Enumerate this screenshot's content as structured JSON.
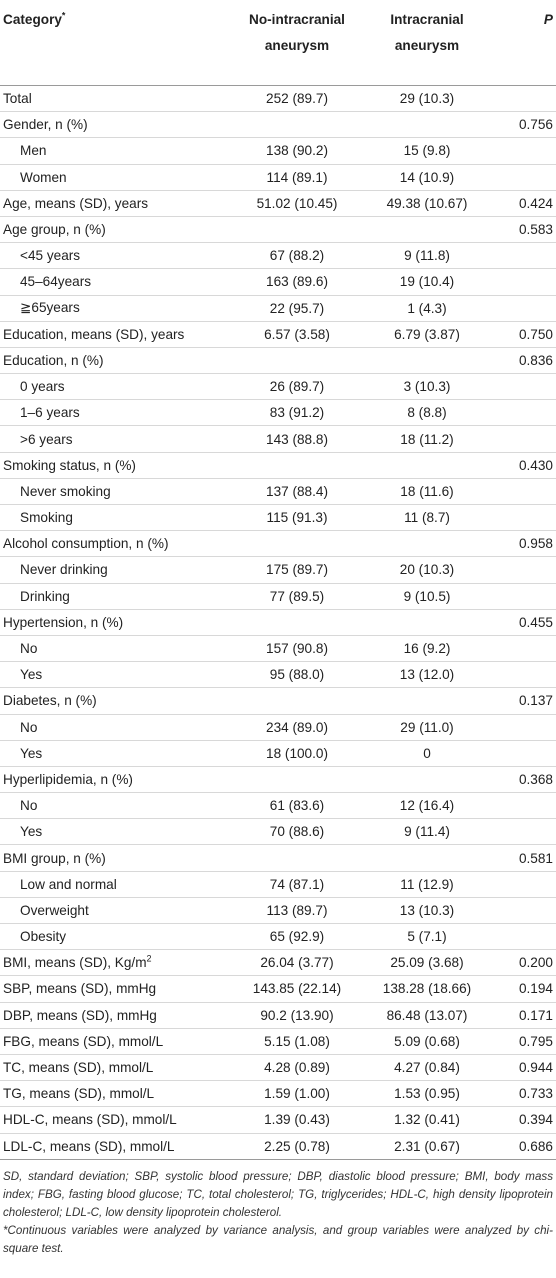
{
  "header": {
    "category": "Category",
    "category_mark": "*",
    "col_no": "No-intracranial aneurysm",
    "col_yes": "Intracranial aneurysm",
    "col_p": "P"
  },
  "rows": [
    {
      "label": "Total",
      "no": "252 (89.7)",
      "yes": "29 (10.3)",
      "p": "",
      "sub": false
    },
    {
      "label": "Gender, n (%)",
      "no": "",
      "yes": "",
      "p": "0.756",
      "sub": false
    },
    {
      "label": "Men",
      "no": "138 (90.2)",
      "yes": "15 (9.8)",
      "p": "",
      "sub": true
    },
    {
      "label": "Women",
      "no": "114 (89.1)",
      "yes": "14 (10.9)",
      "p": "",
      "sub": true
    },
    {
      "label": "Age, means (SD), years",
      "no": "51.02 (10.45)",
      "yes": "49.38 (10.67)",
      "p": "0.424",
      "sub": false
    },
    {
      "label": "Age group, n (%)",
      "no": "",
      "yes": "",
      "p": "0.583",
      "sub": false
    },
    {
      "label": "<45 years",
      "no": "67 (88.2)",
      "yes": "9 (11.8)",
      "p": "",
      "sub": true
    },
    {
      "label": "45–64years",
      "no": "163 (89.6)",
      "yes": "19 (10.4)",
      "p": "",
      "sub": true
    },
    {
      "label": "≧65years",
      "no": "22 (95.7)",
      "yes": "1 (4.3)",
      "p": "",
      "sub": true
    },
    {
      "label": "Education, means (SD), years",
      "no": "6.57 (3.58)",
      "yes": "6.79 (3.87)",
      "p": "0.750",
      "sub": false
    },
    {
      "label": "Education, n (%)",
      "no": "",
      "yes": "",
      "p": "0.836",
      "sub": false
    },
    {
      "label": "0 years",
      "no": "26 (89.7)",
      "yes": "3 (10.3)",
      "p": "",
      "sub": true
    },
    {
      "label": "1–6 years",
      "no": "83 (91.2)",
      "yes": "8 (8.8)",
      "p": "",
      "sub": true
    },
    {
      "label": ">6 years",
      "no": "143 (88.8)",
      "yes": "18 (11.2)",
      "p": "",
      "sub": true
    },
    {
      "label": "Smoking status, n (%)",
      "no": "",
      "yes": "",
      "p": "0.430",
      "sub": false
    },
    {
      "label": "Never smoking",
      "no": "137 (88.4)",
      "yes": "18 (11.6)",
      "p": "",
      "sub": true
    },
    {
      "label": "Smoking",
      "no": "115 (91.3)",
      "yes": "11 (8.7)",
      "p": "",
      "sub": true
    },
    {
      "label": "Alcohol consumption, n (%)",
      "no": "",
      "yes": "",
      "p": "0.958",
      "sub": false
    },
    {
      "label": "Never drinking",
      "no": "175 (89.7)",
      "yes": "20 (10.3)",
      "p": "",
      "sub": true
    },
    {
      "label": "Drinking",
      "no": "77 (89.5)",
      "yes": "9 (10.5)",
      "p": "",
      "sub": true
    },
    {
      "label": "Hypertension, n (%)",
      "no": "",
      "yes": "",
      "p": "0.455",
      "sub": false
    },
    {
      "label": "No",
      "no": "157 (90.8)",
      "yes": "16 (9.2)",
      "p": "",
      "sub": true
    },
    {
      "label": "Yes",
      "no": "95 (88.0)",
      "yes": "13 (12.0)",
      "p": "",
      "sub": true
    },
    {
      "label": "Diabetes, n (%)",
      "no": "",
      "yes": "",
      "p": "0.137",
      "sub": false
    },
    {
      "label": "No",
      "no": "234 (89.0)",
      "yes": "29 (11.0)",
      "p": "",
      "sub": true
    },
    {
      "label": "Yes",
      "no": "18 (100.0)",
      "yes": "0",
      "p": "",
      "sub": true
    },
    {
      "label": "Hyperlipidemia, n (%)",
      "no": "",
      "yes": "",
      "p": "0.368",
      "sub": false
    },
    {
      "label": "No",
      "no": "61 (83.6)",
      "yes": "12 (16.4)",
      "p": "",
      "sub": true
    },
    {
      "label": "Yes",
      "no": "70 (88.6)",
      "yes": "9 (11.4)",
      "p": "",
      "sub": true
    },
    {
      "label": "BMI group, n (%)",
      "no": "",
      "yes": "",
      "p": "0.581",
      "sub": false
    },
    {
      "label": "Low and normal",
      "no": "74 (87.1)",
      "yes": "11 (12.9)",
      "p": "",
      "sub": true
    },
    {
      "label": "Overweight",
      "no": "113 (89.7)",
      "yes": "13 (10.3)",
      "p": "",
      "sub": true
    },
    {
      "label": "Obesity",
      "no": "65 (92.9)",
      "yes": "5 (7.1)",
      "p": "",
      "sub": true
    },
    {
      "label": "BMI, means (SD), Kg/m",
      "label_sup": "2",
      "no": "26.04 (3.77)",
      "yes": "25.09 (3.68)",
      "p": "0.200",
      "sub": false
    },
    {
      "label": "SBP, means (SD), mmHg",
      "no": "143.85 (22.14)",
      "yes": "138.28 (18.66)",
      "p": "0.194",
      "sub": false
    },
    {
      "label": "DBP, means (SD), mmHg",
      "no": "90.2 (13.90)",
      "yes": "86.48 (13.07)",
      "p": "0.171",
      "sub": false
    },
    {
      "label": "FBG, means (SD), mmol/L",
      "no": "5.15 (1.08)",
      "yes": "5.09 (0.68)",
      "p": "0.795",
      "sub": false
    },
    {
      "label": "TC, means (SD), mmol/L",
      "no": "4.28 (0.89)",
      "yes": "4.27 (0.84)",
      "p": "0.944",
      "sub": false
    },
    {
      "label": "TG, means (SD), mmol/L",
      "no": "1.59 (1.00)",
      "yes": "1.53 (0.95)",
      "p": "0.733",
      "sub": false
    },
    {
      "label": "HDL-C, means (SD), mmol/L",
      "no": "1.39 (0.43)",
      "yes": "1.32 (0.41)",
      "p": "0.394",
      "sub": false
    },
    {
      "label": "LDL-C, means (SD), mmol/L",
      "no": "2.25 (0.78)",
      "yes": "2.31 (0.67)",
      "p": "0.686",
      "sub": false
    }
  ],
  "footnotes": {
    "abbreviations": "SD, standard deviation; SBP, systolic blood pressure; DBP, diastolic blood pressure; BMI, body mass index; FBG, fasting blood glucose; TC, total cholesterol; TG, triglycerides; HDL-C, high density lipoprotein cholesterol; LDL-C, low density lipoprotein cholesterol.",
    "note": "*Continuous variables were analyzed by variance analysis, and group variables were analyzed by chi-square test."
  }
}
